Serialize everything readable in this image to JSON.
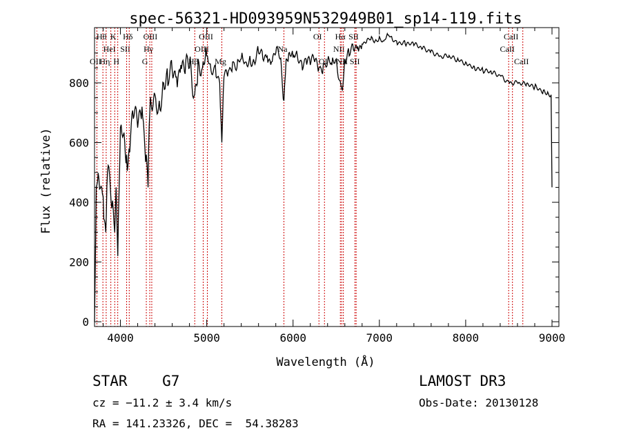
{
  "chart_data": {
    "type": "line",
    "title": "spec-56321-HD093959N532949B01_sp14-119.fits",
    "xlabel": "Wavelength (Å)",
    "ylabel": "Flux (relative)",
    "xlim": [
      3700,
      9080
    ],
    "ylim": [
      -16,
      985
    ],
    "xticks": [
      4000,
      5000,
      6000,
      7000,
      8000,
      9000
    ],
    "yticks": [
      0,
      200,
      400,
      600,
      800
    ],
    "line_color": "#000000",
    "marker_color": "#cc0000",
    "series": [
      {
        "name": "spectrum",
        "x": [
          3700,
          3720,
          3750,
          3800,
          3830,
          3850,
          3900,
          3934,
          3950,
          3969,
          4000,
          4050,
          4072,
          4100,
          4150,
          4200,
          4250,
          4300,
          4320,
          4340,
          4400,
          4450,
          4500,
          4550,
          4600,
          4650,
          4700,
          4750,
          4800,
          4861,
          4900,
          4950,
          5000,
          5050,
          5100,
          5150,
          5175,
          5200,
          5250,
          5300,
          5350,
          5400,
          5450,
          5500,
          5550,
          5600,
          5650,
          5700,
          5750,
          5800,
          5850,
          5894,
          5920,
          5950,
          6000,
          6050,
          6100,
          6150,
          6200,
          6250,
          6300,
          6350,
          6400,
          6450,
          6500,
          6563,
          6600,
          6650,
          6700,
          6750,
          6800,
          6850,
          6900,
          6950,
          7000,
          7050,
          7100,
          7150,
          7200,
          7300,
          7400,
          7500,
          7600,
          7700,
          7800,
          7900,
          8000,
          8100,
          8200,
          8300,
          8400,
          8500,
          8600,
          8700,
          8800,
          8900,
          8950,
          8990,
          9000
        ],
        "y": [
          0,
          450,
          480,
          420,
          300,
          500,
          380,
          300,
          450,
          220,
          650,
          600,
          560,
          580,
          680,
          650,
          720,
          560,
          450,
          700,
          760,
          740,
          800,
          790,
          840,
          820,
          860,
          830,
          850,
          760,
          880,
          850,
          890,
          840,
          860,
          800,
          600,
          820,
          840,
          870,
          850,
          880,
          870,
          890,
          870,
          900,
          880,
          890,
          870,
          900,
          880,
          740,
          880,
          900,
          885,
          890,
          870,
          880,
          860,
          870,
          850,
          860,
          870,
          860,
          880,
          780,
          880,
          890,
          910,
          920,
          930,
          935,
          945,
          940,
          955,
          940,
          960,
          945,
          940,
          930,
          925,
          915,
          910,
          890,
          885,
          875,
          870,
          855,
          840,
          830,
          825,
          805,
          800,
          790,
          785,
          775,
          770,
          760,
          450
        ]
      }
    ],
    "lines": [
      {
        "wl": 3727,
        "label": "OII",
        "row": 2
      },
      {
        "wl": 3797,
        "label": "Hθ",
        "row": 0
      },
      {
        "wl": 3835,
        "label": "Hη",
        "row": 2
      },
      {
        "wl": 3889,
        "label": "HeI",
        "row": 1
      },
      {
        "wl": 3934,
        "label": "K",
        "row": 0
      },
      {
        "wl": 3969,
        "label": "H",
        "row": 2
      },
      {
        "wl": 4072,
        "label": "SII",
        "row": 1
      },
      {
        "wl": 4102,
        "label": "Hδ",
        "row": 0
      },
      {
        "wl": 4300,
        "label": "G",
        "row": 2
      },
      {
        "wl": 4340,
        "label": "Hγ",
        "row": 1
      },
      {
        "wl": 4363,
        "label": "OIII",
        "row": 0
      },
      {
        "wl": 4861,
        "label": "Hβ",
        "row": 2
      },
      {
        "wl": 4959,
        "label": "OIII",
        "row": 1
      },
      {
        "wl": 5007,
        "label": "OIII",
        "row": 0
      },
      {
        "wl": 5175,
        "label": "Mg",
        "row": 2
      },
      {
        "wl": 5894,
        "label": "Na",
        "row": 1
      },
      {
        "wl": 6300,
        "label": "OI",
        "row": 0
      },
      {
        "wl": 6364,
        "label": "OI",
        "row": 2
      },
      {
        "wl": 6548,
        "label": "NII",
        "row": 1
      },
      {
        "wl": 6563,
        "label": "Hα",
        "row": 0
      },
      {
        "wl": 6583,
        "label": "NII",
        "row": 2
      },
      {
        "wl": 6717,
        "label": "SII",
        "row": 0
      },
      {
        "wl": 6731,
        "label": "SII",
        "row": 2
      },
      {
        "wl": 8498,
        "label": "CaII",
        "row": 1
      },
      {
        "wl": 8542,
        "label": "CaII",
        "row": 0
      },
      {
        "wl": 8662,
        "label": "CaII",
        "row": 2
      }
    ]
  },
  "info": {
    "object": "STAR    G7",
    "cz": "cz = −11.2 ± 3.4 km/s",
    "coords": "RA = 141.23326, DEC =  54.38283",
    "survey": "LAMOST DR3",
    "obs_date": "Obs-Date: 20130128"
  }
}
